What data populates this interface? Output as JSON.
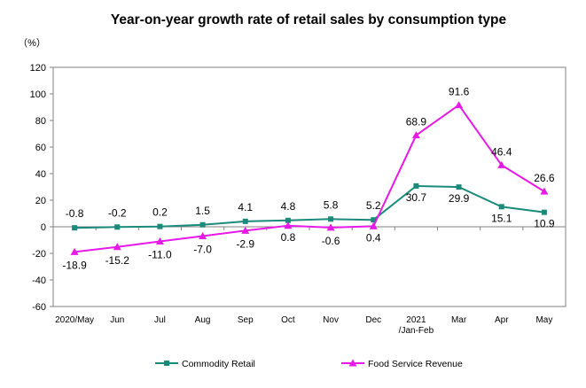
{
  "chart_data": {
    "type": "line",
    "title": "Year-on-year growth rate of retail sales by consumption type",
    "unit": "（%）",
    "categories": [
      [
        "2020/May"
      ],
      [
        "Jun"
      ],
      [
        "Jul"
      ],
      [
        "Aug"
      ],
      [
        "Sep"
      ],
      [
        "Oct"
      ],
      [
        "Nov"
      ],
      [
        "Dec"
      ],
      [
        "2021",
        "/Jan-Feb"
      ],
      [
        "Mar"
      ],
      [
        "Apr"
      ],
      [
        "May"
      ]
    ],
    "ylim": [
      -60,
      120
    ],
    "yticks": [
      -60,
      -40,
      -20,
      0,
      20,
      40,
      60,
      80,
      100,
      120
    ],
    "grid": false,
    "legend_position": "bottom",
    "series": [
      {
        "name": "Commodity Retail",
        "color": "#1a8a7a",
        "marker": "square",
        "values": [
          -0.8,
          -0.2,
          0.2,
          1.5,
          4.1,
          4.8,
          5.8,
          5.2,
          30.7,
          29.9,
          15.1,
          10.9
        ],
        "labels": [
          "-0.8",
          "-0.2",
          "0.2",
          "1.5",
          "4.1",
          "4.8",
          "5.8",
          "5.2",
          "30.7",
          "29.9",
          "15.1",
          "10.9"
        ]
      },
      {
        "name": "Food Service Revenue",
        "color": "#e619e6",
        "marker": "triangle",
        "values": [
          -18.9,
          -15.2,
          -11.0,
          -7.0,
          -2.9,
          0.8,
          -0.6,
          0.4,
          68.9,
          91.6,
          46.4,
          26.6
        ],
        "labels": [
          "-18.9",
          "-15.2",
          "-11.0",
          "-7.0",
          "-2.9",
          "0.8",
          "-0.6",
          "0.4",
          "68.9",
          "91.6",
          "46.4",
          "26.6"
        ]
      }
    ]
  }
}
